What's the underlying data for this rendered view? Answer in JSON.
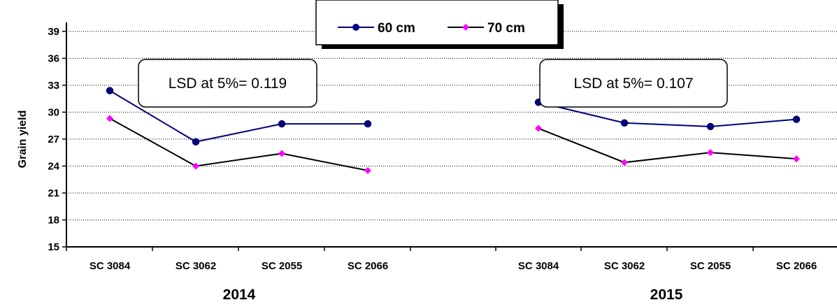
{
  "chart_data": {
    "type": "line",
    "ylabel": "Grain yield",
    "ylim": [
      15,
      40
    ],
    "yticks": [
      15,
      18,
      21,
      24,
      27,
      30,
      33,
      36,
      39
    ],
    "grid": "horizontal dotted",
    "legend_position": "top-center",
    "groups": [
      {
        "label": "2014",
        "categories": [
          "SC 3084",
          "SC 3062",
          "SC 2055",
          "SC 2066"
        ],
        "annotation": "LSD at 5%= 0.119",
        "series": [
          {
            "name": "60 cm",
            "values": [
              32.4,
              26.7,
              28.7,
              28.7
            ]
          },
          {
            "name": "70 cm",
            "values": [
              29.3,
              24.0,
              25.4,
              23.5
            ]
          }
        ]
      },
      {
        "label": "2015",
        "categories": [
          "SC 3084",
          "SC 3062",
          "SC 2055",
          "SC 2066"
        ],
        "annotation": "LSD at 5%= 0.107",
        "series": [
          {
            "name": "60 cm",
            "values": [
              31.1,
              28.8,
              28.4,
              29.2
            ]
          },
          {
            "name": "70 cm",
            "values": [
              28.2,
              24.4,
              25.5,
              24.8
            ]
          }
        ]
      }
    ],
    "series_styles": [
      {
        "name": "60 cm",
        "line_color": "#000080",
        "marker": "circle",
        "marker_color": "#000080"
      },
      {
        "name": "70 cm",
        "line_color": "#000000",
        "marker": "diamond",
        "marker_color": "#ff00ff"
      }
    ]
  }
}
